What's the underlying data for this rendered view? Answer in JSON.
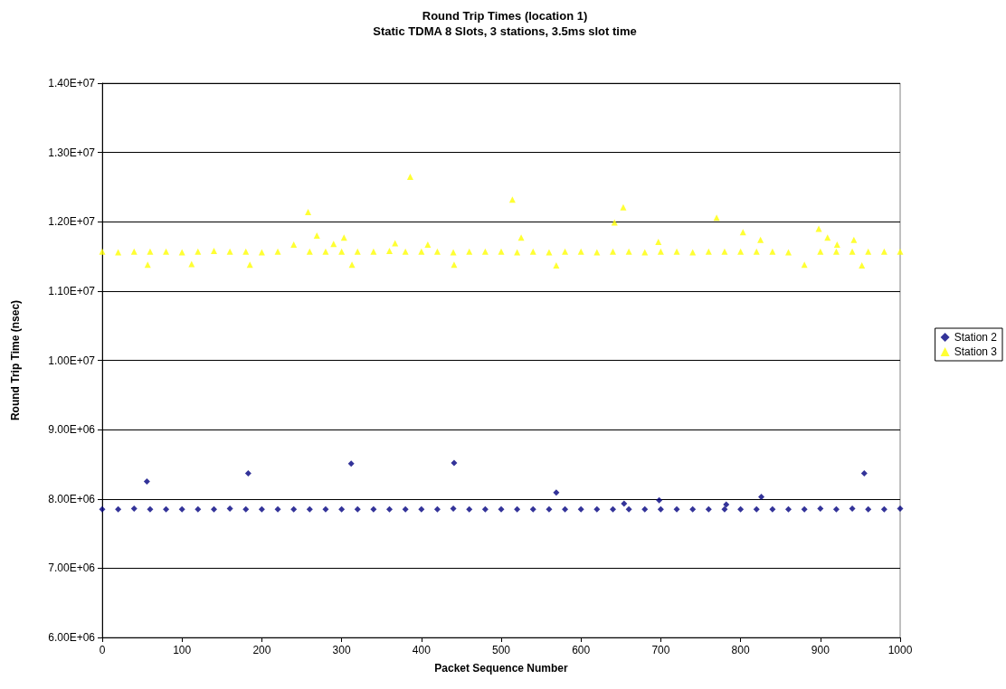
{
  "chart_data": {
    "type": "scatter",
    "title": "Round Trip Times (location 1)",
    "subtitle": "Static TDMA 8 Slots, 3 stations, 3.5ms slot time",
    "xlabel": "Packet Sequence Number",
    "ylabel": "Round Trip Time (nsec)",
    "xlim": [
      0,
      1000
    ],
    "xticks": [
      0,
      100,
      200,
      300,
      400,
      500,
      600,
      700,
      800,
      900,
      1000
    ],
    "ylim": [
      6000000,
      14000000
    ],
    "yticks": [
      {
        "value": 6000000,
        "label": "6.00E+06"
      },
      {
        "value": 7000000,
        "label": "7.00E+06"
      },
      {
        "value": 8000000,
        "label": "8.00E+06"
      },
      {
        "value": 9000000,
        "label": "9.00E+06"
      },
      {
        "value": 10000000,
        "label": "1.00E+07"
      },
      {
        "value": 11000000,
        "label": "1.10E+07"
      },
      {
        "value": 12000000,
        "label": "1.20E+07"
      },
      {
        "value": 13000000,
        "label": "1.30E+07"
      },
      {
        "value": 14000000,
        "label": "1.40E+07"
      }
    ],
    "grid": "y",
    "legend": "right",
    "series": [
      {
        "name": "Station 2",
        "color": "#000080",
        "marker": "diamond",
        "x": [
          0,
          20,
          40,
          56,
          60,
          80,
          100,
          120,
          140,
          160,
          180,
          183,
          200,
          220,
          240,
          260,
          280,
          300,
          312,
          320,
          340,
          360,
          380,
          400,
          420,
          440,
          441,
          460,
          480,
          500,
          520,
          540,
          560,
          569,
          580,
          600,
          620,
          640,
          654,
          660,
          680,
          698,
          700,
          720,
          740,
          760,
          780,
          782,
          800,
          820,
          826,
          840,
          860,
          880,
          900,
          920,
          940,
          955,
          960,
          980,
          1000
        ],
        "values": [
          7850000,
          7850000,
          7860000,
          8250000,
          7850000,
          7850000,
          7850000,
          7850000,
          7850000,
          7860000,
          7850000,
          8370000,
          7850000,
          7850000,
          7850000,
          7850000,
          7850000,
          7850000,
          8510000,
          7850000,
          7850000,
          7850000,
          7850000,
          7850000,
          7850000,
          7860000,
          8520000,
          7850000,
          7850000,
          7850000,
          7850000,
          7850000,
          7850000,
          8090000,
          7850000,
          7850000,
          7850000,
          7850000,
          7930000,
          7850000,
          7850000,
          7980000,
          7850000,
          7850000,
          7850000,
          7850000,
          7850000,
          7920000,
          7850000,
          7850000,
          8030000,
          7850000,
          7850000,
          7850000,
          7860000,
          7850000,
          7860000,
          8370000,
          7850000,
          7850000,
          7860000
        ]
      },
      {
        "name": "Station 3",
        "color": "#ffff00",
        "marker": "triangle",
        "x": [
          0,
          20,
          40,
          57,
          60,
          80,
          100,
          112,
          120,
          140,
          160,
          180,
          185,
          200,
          220,
          240,
          258,
          260,
          269,
          280,
          290,
          300,
          303,
          313,
          320,
          340,
          360,
          367,
          380,
          386,
          400,
          408,
          420,
          440,
          441,
          460,
          480,
          500,
          514,
          520,
          525,
          540,
          560,
          569,
          580,
          600,
          620,
          640,
          642,
          653,
          660,
          680,
          697,
          700,
          720,
          740,
          760,
          770,
          780,
          800,
          803,
          820,
          825,
          840,
          860,
          880,
          898,
          900,
          909,
          920,
          921,
          940,
          942,
          952,
          960,
          980,
          1000
        ],
        "values": [
          11570000,
          11560000,
          11570000,
          11380000,
          11570000,
          11570000,
          11560000,
          11390000,
          11570000,
          11580000,
          11570000,
          11570000,
          11380000,
          11560000,
          11570000,
          11670000,
          12140000,
          11570000,
          11800000,
          11570000,
          11680000,
          11570000,
          11770000,
          11380000,
          11570000,
          11570000,
          11580000,
          11690000,
          11570000,
          12650000,
          11570000,
          11670000,
          11570000,
          11560000,
          11380000,
          11570000,
          11570000,
          11570000,
          12320000,
          11560000,
          11770000,
          11570000,
          11560000,
          11370000,
          11570000,
          11570000,
          11560000,
          11570000,
          11990000,
          12210000,
          11570000,
          11560000,
          11710000,
          11570000,
          11570000,
          11560000,
          11570000,
          12060000,
          11570000,
          11570000,
          11850000,
          11570000,
          11740000,
          11570000,
          11560000,
          11380000,
          11900000,
          11570000,
          11770000,
          11570000,
          11670000,
          11570000,
          11740000,
          11370000,
          11570000,
          11570000,
          11570000
        ]
      }
    ]
  }
}
